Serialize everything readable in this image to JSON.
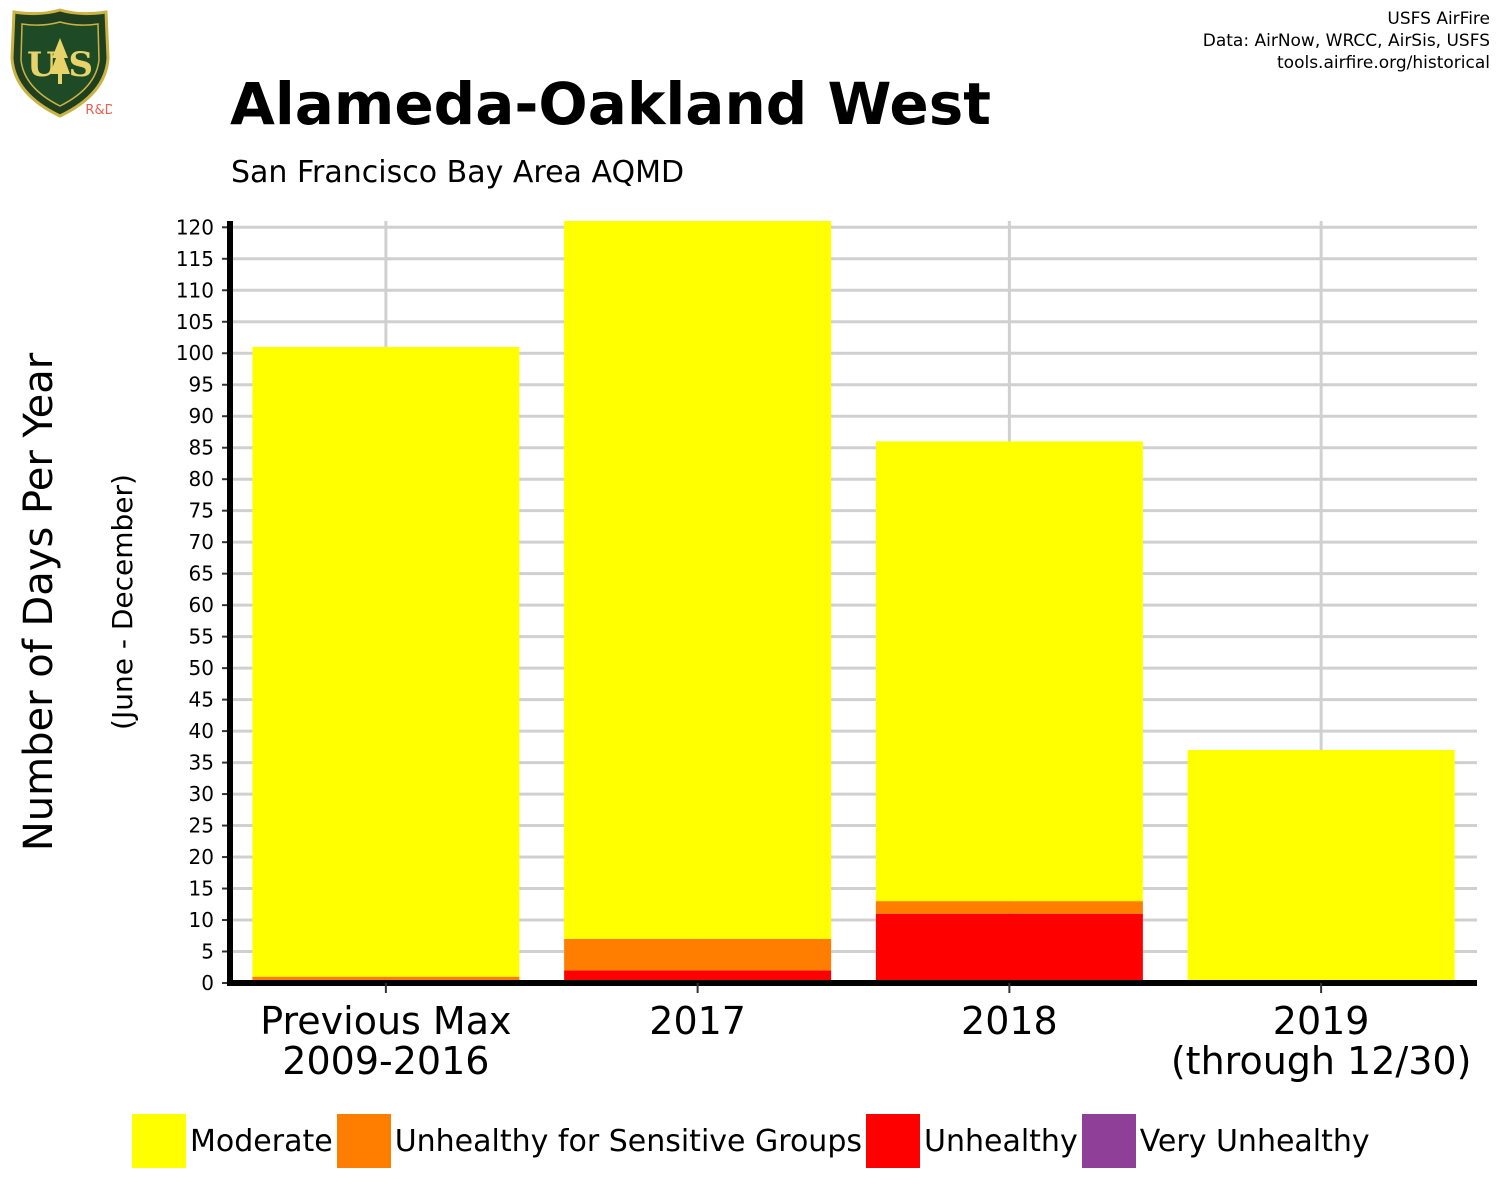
{
  "header": {
    "title": "Alameda-Oakland West",
    "subtitle": "San Francisco Bay Area AQMD",
    "credits": [
      "USFS AirFire",
      "Data: AirNow, WRCC, AirSis, USFS",
      "tools.airfire.org/historical"
    ]
  },
  "logo": {
    "text_top": "FOREST SERVICE",
    "text_main": "U S",
    "text_bottom": "DEPARTMENT OF AGRICULTURE",
    "tag": "R&D"
  },
  "colors": {
    "Moderate": "#ffff00",
    "Unhealthy for Sensitive Groups": "#ff7e00",
    "Unhealthy": "#ff0000",
    "Very Unhealthy": "#8f3f97"
  },
  "chart_data": {
    "type": "bar",
    "stacked": true,
    "title": "Alameda-Oakland West",
    "subtitle": "San Francisco Bay Area AQMD",
    "ylabel": "Number of Days Per Year",
    "ylabel_sub": "(June - December)",
    "xlabel": "",
    "ylim": [
      0,
      120
    ],
    "yticks": [
      0,
      5,
      10,
      15,
      20,
      25,
      30,
      35,
      40,
      45,
      50,
      55,
      60,
      65,
      70,
      75,
      80,
      85,
      90,
      95,
      100,
      105,
      110,
      115,
      120
    ],
    "grid": true,
    "legend_position": "bottom",
    "categories": [
      [
        "Previous Max",
        "2009-2016"
      ],
      [
        "2017"
      ],
      [
        "2018"
      ],
      [
        "2019",
        "(through 12/30)"
      ]
    ],
    "series": [
      {
        "name": "Very Unhealthy",
        "values": [
          0,
          0,
          0,
          0
        ]
      },
      {
        "name": "Unhealthy",
        "values": [
          0,
          2,
          11,
          0
        ]
      },
      {
        "name": "Unhealthy for Sensitive Groups",
        "values": [
          1,
          5,
          2,
          0
        ]
      },
      {
        "name": "Moderate",
        "values": [
          100,
          114,
          73,
          37
        ]
      }
    ]
  }
}
